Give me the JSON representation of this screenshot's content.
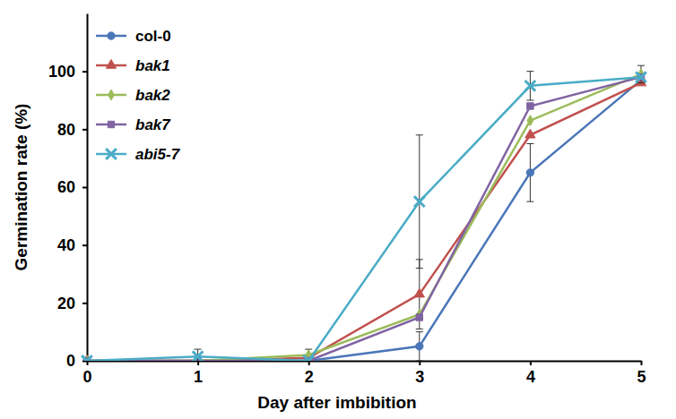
{
  "chart_data": {
    "type": "line",
    "x_label": "Day after imbibition",
    "y_label": "Germination rate (%)",
    "x": [
      0,
      1,
      2,
      3,
      4,
      5
    ],
    "xlim": [
      0,
      5
    ],
    "xticks": [
      0,
      1,
      2,
      3,
      4,
      5
    ],
    "ylim": [
      0,
      120
    ],
    "yticks": [
      0,
      20,
      40,
      60,
      80,
      100
    ],
    "grid": false,
    "legend": "upper left",
    "series": [
      {
        "name": "col-0",
        "color": "#4a76b8",
        "marker": "circle",
        "values": [
          0,
          0,
          0,
          5,
          65,
          97
        ],
        "errors": [
          null,
          null,
          null,
          5,
          10,
          null
        ]
      },
      {
        "name": "bak1",
        "color": "#c0504d",
        "marker": "triangle",
        "values": [
          0,
          0,
          1,
          23,
          78,
          96
        ],
        "errors": [
          null,
          null,
          null,
          12,
          null,
          null
        ]
      },
      {
        "name": "bak2",
        "color": "#9bbb59",
        "marker": "diamond",
        "values": [
          0,
          0,
          2,
          16,
          83,
          99
        ],
        "errors": [
          null,
          null,
          2,
          null,
          null,
          3
        ]
      },
      {
        "name": "bak7",
        "color": "#8064a2",
        "marker": "square",
        "values": [
          0,
          0,
          0,
          15,
          88,
          98
        ]
      },
      {
        "name": "abi5-7",
        "color": "#4bacc6",
        "marker": "x",
        "values": [
          0,
          1.5,
          0,
          55,
          95,
          98
        ],
        "errors": [
          null,
          2.5,
          null,
          23,
          5,
          null
        ]
      }
    ]
  }
}
